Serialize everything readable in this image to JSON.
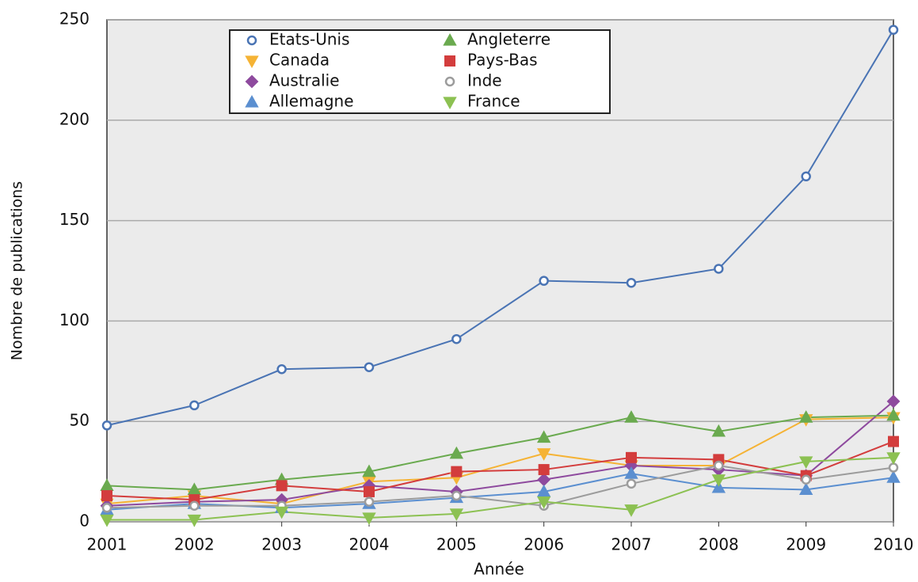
{
  "chart_data": {
    "type": "line",
    "xlabel": "Année",
    "ylabel": "Nombre de publications",
    "x": [
      2001,
      2002,
      2003,
      2004,
      2005,
      2006,
      2007,
      2008,
      2009,
      2010
    ],
    "xlim": [
      2001,
      2010
    ],
    "xticks": [
      2001,
      2002,
      2003,
      2004,
      2005,
      2006,
      2007,
      2008,
      2009,
      2010
    ],
    "ylim": [
      0,
      250
    ],
    "yticks": [
      0,
      50,
      100,
      150,
      200,
      250
    ],
    "grid": true,
    "legend": "upper left",
    "series": [
      {
        "name": "Etats-Unis",
        "color": "#4a74b4",
        "marker": "circle-open",
        "values": [
          48,
          58,
          76,
          77,
          91,
          120,
          119,
          126,
          172,
          245
        ]
      },
      {
        "name": "Canada",
        "color": "#f5b335",
        "marker": "triangle-down",
        "values": [
          9,
          13,
          9,
          20,
          22,
          34,
          28,
          28,
          51,
          52
        ]
      },
      {
        "name": "Australie",
        "color": "#8e4a9e",
        "marker": "diamond",
        "values": [
          8,
          10,
          11,
          18,
          15,
          21,
          28,
          26,
          23,
          60
        ]
      },
      {
        "name": "Allemagne",
        "color": "#5b8fd0",
        "marker": "triangle-up",
        "values": [
          6,
          9,
          7,
          9,
          12,
          15,
          24,
          17,
          16,
          22
        ]
      },
      {
        "name": "Angleterre",
        "color": "#6aaa4f",
        "marker": "triangle-up",
        "values": [
          18,
          16,
          21,
          25,
          34,
          42,
          52,
          45,
          52,
          53
        ]
      },
      {
        "name": "Pays-Bas",
        "color": "#d33d3d",
        "marker": "square",
        "values": [
          13,
          11,
          18,
          15,
          25,
          26,
          32,
          31,
          23,
          40
        ]
      },
      {
        "name": "Inde",
        "color": "#9c9c9c",
        "marker": "circle-open",
        "values": [
          7,
          8,
          8,
          10,
          13,
          8,
          19,
          28,
          21,
          27
        ]
      },
      {
        "name": "France",
        "color": "#8cc152",
        "marker": "triangle-down",
        "values": [
          1,
          1,
          5,
          2,
          4,
          10,
          6,
          21,
          30,
          32
        ]
      }
    ]
  }
}
